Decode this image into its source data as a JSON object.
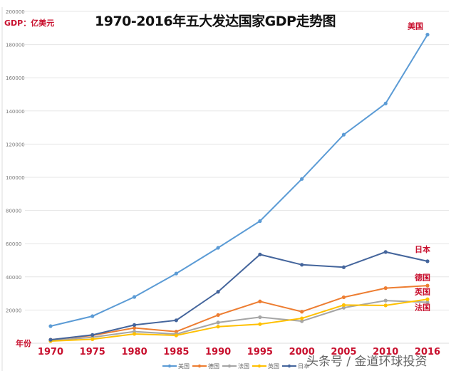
{
  "chart_data": {
    "type": "line",
    "title": "1970-2016年五大发达国家GDP走势图",
    "ylabel": "GDP：亿美元",
    "xlabel": "年份",
    "categories": [
      "1970",
      "1975",
      "1980",
      "1985",
      "1990",
      "1995",
      "2000",
      "2005",
      "2010",
      "2016"
    ],
    "ylim": [
      0,
      200000
    ],
    "yticks": [
      20000,
      40000,
      60000,
      80000,
      100000,
      120000,
      140000,
      160000,
      180000,
      200000
    ],
    "grid": true,
    "legend_position": "bottom",
    "series": [
      {
        "name": "美国",
        "color": "#5b9bd5",
        "values": [
          10300,
          16300,
          27900,
          42000,
          57500,
          73600,
          99000,
          125700,
          144500,
          186000
        ]
      },
      {
        "name": "德国",
        "color": "#ed7d31",
        "values": [
          2100,
          4700,
          9200,
          7000,
          17000,
          25200,
          19000,
          27700,
          33200,
          34700
        ]
      },
      {
        "name": "法国",
        "color": "#a5a5a5",
        "values": [
          1500,
          3600,
          7000,
          5500,
          12500,
          15700,
          13300,
          21400,
          25700,
          24700
        ]
      },
      {
        "name": "英国",
        "color": "#ffc000",
        "values": [
          1300,
          2400,
          5600,
          4700,
          10000,
          11500,
          15000,
          23000,
          22800,
          26500
        ]
      },
      {
        "name": "日本",
        "color": "#44659c",
        "values": [
          2100,
          5000,
          11000,
          13800,
          31000,
          53500,
          47300,
          45800,
          55000,
          49400
        ]
      }
    ],
    "end_labels": [
      "美国",
      "日本",
      "德国",
      "英国",
      "法国"
    ],
    "label_color": "#c8102e"
  },
  "watermark": "头条号 / 金道环球投资"
}
